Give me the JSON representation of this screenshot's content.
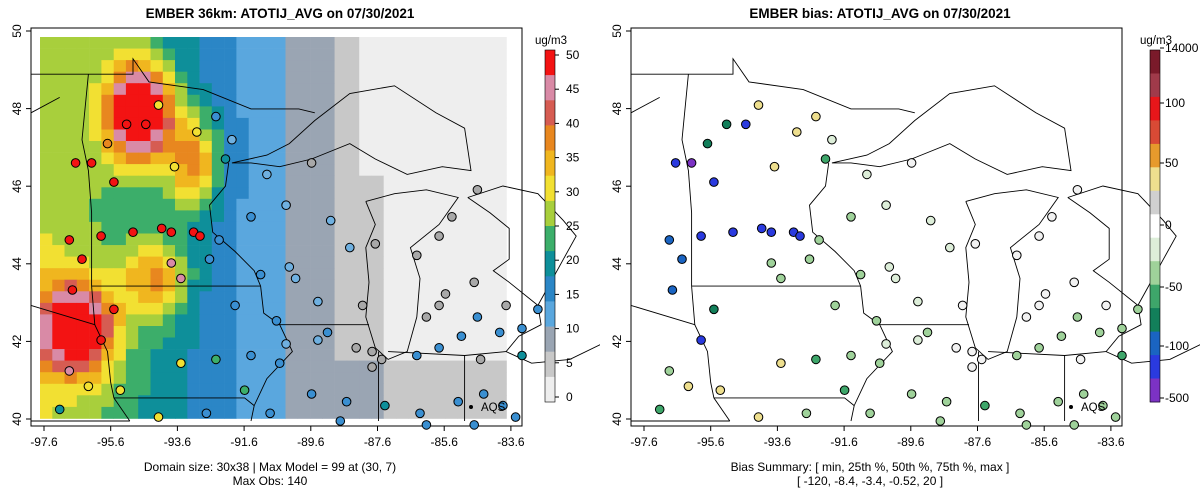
{
  "left_panel": {
    "title": "EMBER 36km: ATOTIJ_AVG on 07/30/2021",
    "x_ticks": [
      "-97.6",
      "-95.6",
      "-93.6",
      "-91.6",
      "-89.6",
      "-87.6",
      "-85.6",
      "-83.6"
    ],
    "y_ticks": [
      "40",
      "42",
      "44",
      "46",
      "48",
      "50"
    ],
    "legend_unit": "ug/m3",
    "legend_ticks": [
      "0",
      "5",
      "10",
      "15",
      "20",
      "25",
      "30",
      "35",
      "40",
      "45",
      "50"
    ],
    "station_label": "AQS",
    "summary_lines": [
      "Domain size: 30x38 | Max Model = 99 at (30, 7)",
      "Max Obs: 140"
    ]
  },
  "right_panel": {
    "title": "EMBER bias: ATOTIJ_AVG on 07/30/2021",
    "x_ticks": [
      "-97.6",
      "-95.6",
      "-93.6",
      "-91.6",
      "-89.6",
      "-87.6",
      "-85.6",
      "-83.6"
    ],
    "y_ticks": [
      "40",
      "42",
      "44",
      "46",
      "48",
      "50"
    ],
    "legend_unit": "ug/m3",
    "legend_ticks": [
      "14000",
      "100",
      "50",
      "0",
      "-50",
      "-100",
      "-500"
    ],
    "station_label": "AQS",
    "summary_lines": [
      "Bias Summary: [ min, 25th %, 50th %, 75th %, max ]",
      "[ -120,  -8.4,  -3.4,  -0.52,  20 ]"
    ]
  },
  "colors": {
    "conc_scale": [
      "#eeeeee",
      "#c8c8c8",
      "#9aa5b3",
      "#5aa7de",
      "#2b86c6",
      "#0e8f9a",
      "#3cae6a",
      "#a8cf3c",
      "#f2e032",
      "#f0b61f",
      "#e8871f",
      "#d65c52",
      "#d98aa6",
      "#f31313"
    ],
    "bias_scale": [
      "#ffffff",
      "#ddeed9",
      "#9fd29a",
      "#3ea66a",
      "#127f5a",
      "#1a64c2",
      "#2a3adf",
      "#7c32c4",
      "#d0d0d0",
      "#eedf8e",
      "#e69a2c",
      "#d94a35",
      "#e8161a",
      "#a03a4a",
      "#7a1a2a"
    ]
  }
}
